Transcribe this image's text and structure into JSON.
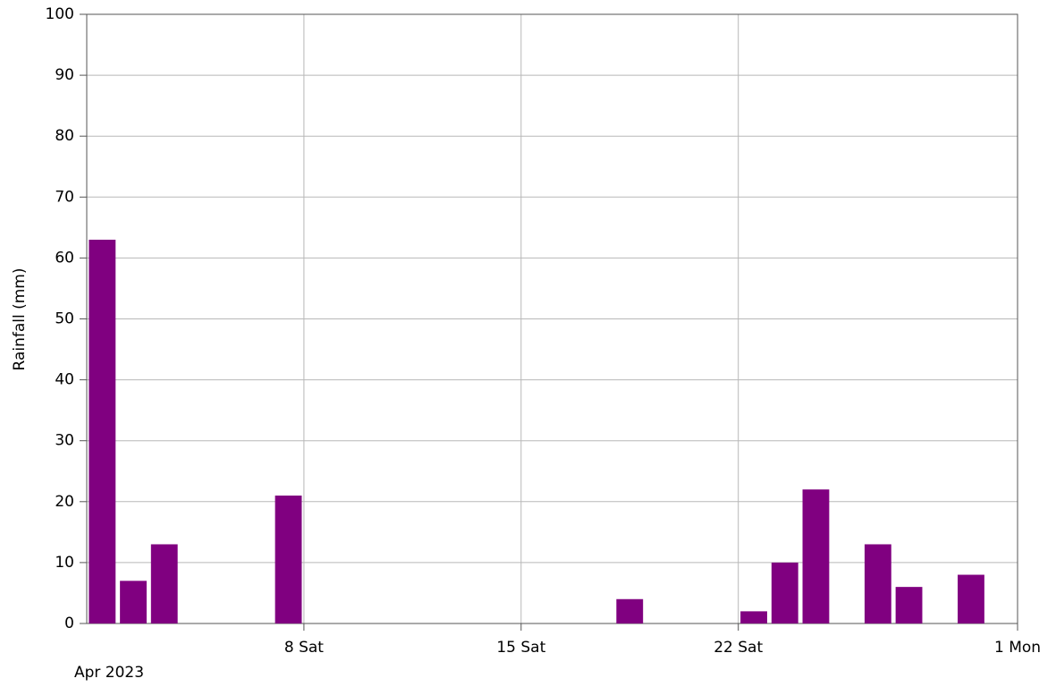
{
  "chart_data": {
    "type": "bar",
    "y_label": "Rainfall (mm)",
    "x_label": "Apr 2023",
    "x": [
      1,
      2,
      3,
      7,
      18,
      22,
      23,
      24,
      26,
      27,
      29
    ],
    "values": [
      63,
      7,
      13,
      21,
      4,
      2,
      10,
      22,
      13,
      6,
      8
    ],
    "color": "#800080",
    "xlim": [
      1,
      31
    ],
    "xticks": [
      {
        "value": 8,
        "label": "8 Sat"
      },
      {
        "value": 15,
        "label": "15 Sat"
      },
      {
        "value": 22,
        "label": "22 Sat"
      },
      {
        "value": 31,
        "label": "1 Mon"
      }
    ],
    "ylim": [
      0,
      100
    ],
    "yticks": [
      0,
      10,
      20,
      30,
      40,
      50,
      60,
      70,
      80,
      90,
      100
    ],
    "grid": true
  }
}
